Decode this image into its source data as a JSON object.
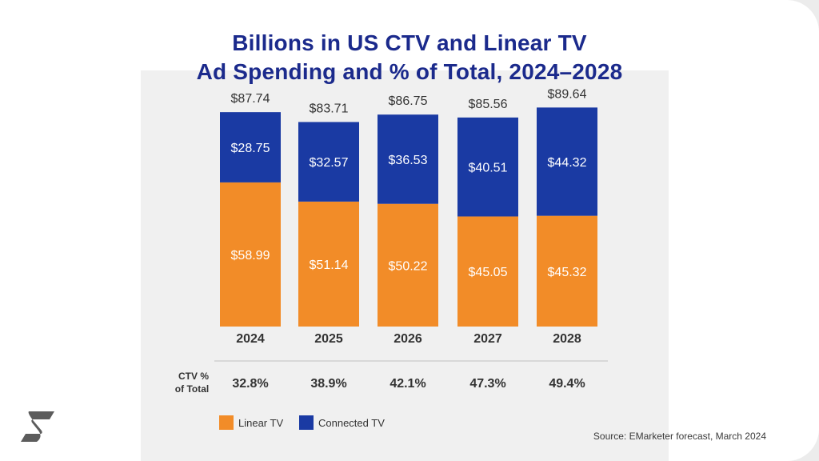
{
  "title": {
    "line1": "Billions in US CTV and Linear TV",
    "line2": "Ad Spending and % of Total, 2024–2028"
  },
  "colors": {
    "linear": "#f28c28",
    "ctv": "#1a3aa3",
    "title": "#1b2a8c",
    "text": "#333333"
  },
  "chart_data": {
    "type": "bar",
    "stacked": true,
    "title": "Billions in US CTV and Linear TV Ad Spending and % of Total, 2024–2028",
    "categories": [
      "2024",
      "2025",
      "2026",
      "2027",
      "2028"
    ],
    "series": [
      {
        "name": "Linear TV",
        "values": [
          58.99,
          51.14,
          50.22,
          45.05,
          45.32
        ],
        "labels": [
          "$58.99",
          "$51.14",
          "$50.22",
          "$45.05",
          "$45.32"
        ]
      },
      {
        "name": "Connected TV",
        "values": [
          28.75,
          32.57,
          36.53,
          40.51,
          44.32
        ],
        "labels": [
          "$28.75",
          "$32.57",
          "$36.53",
          "$40.51",
          "$44.32"
        ]
      }
    ],
    "totals": [
      87.74,
      83.71,
      86.75,
      85.56,
      89.64
    ],
    "total_labels": [
      "$87.74",
      "$83.71",
      "$86.75",
      "$85.56",
      "$89.64"
    ],
    "ctv_share_label": "CTV %",
    "ctv_share_label2": "of Total",
    "ctv_share": [
      "32.8%",
      "38.9%",
      "42.1%",
      "47.3%",
      "49.4%"
    ],
    "ylim": [
      0,
      90
    ],
    "legend": [
      "Linear TV",
      "Connected TV"
    ],
    "legend_position": "bottom-left"
  },
  "source": "Source: EMarketer forecast, March 2024"
}
